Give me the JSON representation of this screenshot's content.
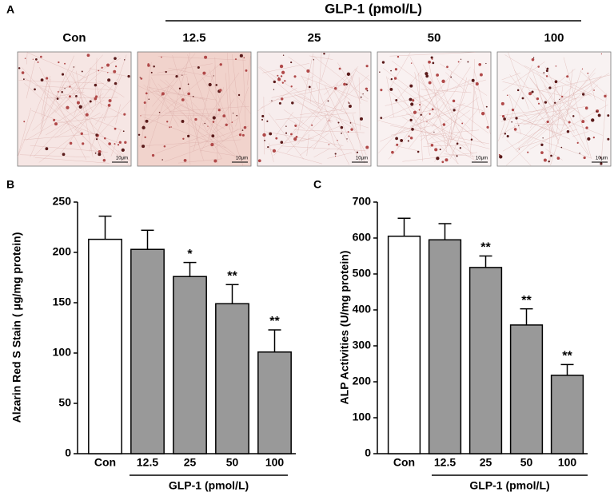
{
  "panel_labels": [
    "A",
    "B",
    "C"
  ],
  "micrographs": {
    "group_label": "GLP-1 (pmol/L)",
    "labels": [
      "Con",
      "12.5",
      "25",
      "50",
      "100"
    ],
    "scale_bar": "10μm"
  },
  "chart_data": [
    {
      "type": "bar",
      "y_label": "Alzarin Red S Stain ( μg/mg protein)",
      "group_label": "GLP-1 (pmol/L)",
      "categories": [
        "Con",
        "12.5",
        "25",
        "50",
        "100"
      ],
      "values": [
        213,
        203,
        176,
        149,
        101
      ],
      "errors": [
        23,
        19,
        14,
        19,
        22
      ],
      "significance": [
        null,
        null,
        "*",
        "**",
        "**"
      ],
      "colors": [
        "#ffffff",
        "#999999",
        "#999999",
        "#999999",
        "#999999"
      ],
      "ylim": [
        0,
        250
      ],
      "yticks": [
        0,
        50,
        100,
        150,
        200,
        250
      ]
    },
    {
      "type": "bar",
      "y_label": "ALP Activities (U/mg protein)",
      "group_label": "GLP-1 (pmol/L)",
      "categories": [
        "Con",
        "12.5",
        "25",
        "50",
        "100"
      ],
      "values": [
        605,
        595,
        518,
        358,
        218
      ],
      "errors": [
        50,
        45,
        32,
        45,
        30
      ],
      "significance": [
        null,
        null,
        "**",
        "**",
        "**"
      ],
      "colors": [
        "#ffffff",
        "#999999",
        "#999999",
        "#999999",
        "#999999"
      ],
      "ylim": [
        0,
        700
      ],
      "yticks": [
        0,
        100,
        200,
        300,
        400,
        500,
        600,
        700
      ]
    }
  ]
}
